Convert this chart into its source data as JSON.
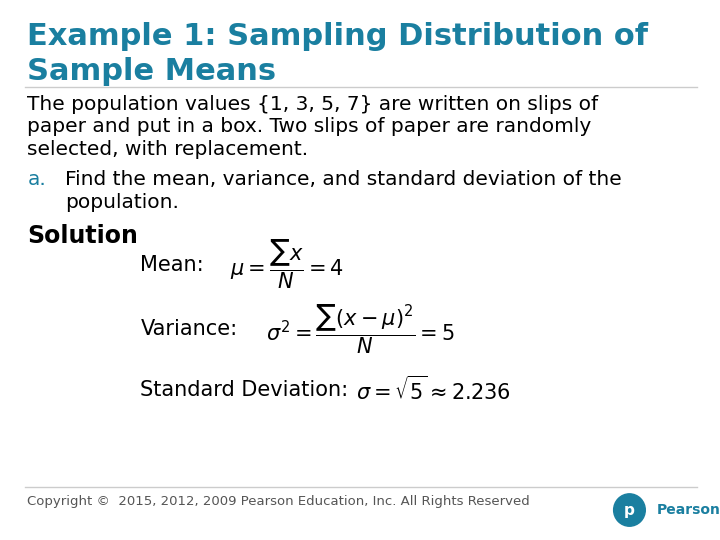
{
  "title_line1": "Example 1: Sampling Distribution of",
  "title_line2": "Sample Means",
  "title_color": "#1a7fa0",
  "title_fontsize": 22,
  "body_line1": "The population values {1, 3, 5, 7} are written on slips of",
  "body_line2": "paper and put in a box. Two slips of paper are randomly",
  "body_line3": "selected, with replacement.",
  "body_fontsize": 14.5,
  "part_a_label": "a.",
  "part_a_color": "#1a7fa0",
  "part_a_line1": "Find the mean, variance, and standard deviation of the",
  "part_a_line2": "population.",
  "part_a_fontsize": 14.5,
  "solution_label": "Solution",
  "solution_fontsize": 17,
  "mean_label": "Mean:",
  "variance_label": "Variance:",
  "std_label": "Standard Deviation:",
  "formula_fontsize": 15,
  "footer_text": "Copyright ©  2015, 2012, 2009 Pearson Education, Inc. All Rights Reserved",
  "footer_fontsize": 9.5,
  "background_color": "#ffffff",
  "text_color": "#000000",
  "teal_color": "#1a7fa0",
  "separator_color": "#cccccc"
}
